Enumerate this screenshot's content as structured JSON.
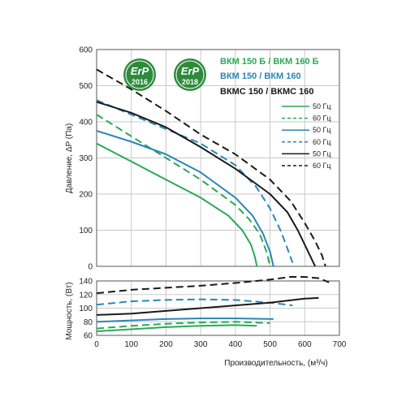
{
  "colors": {
    "green": "#2aa954",
    "blue": "#2a86b8",
    "black": "#1a1a1a",
    "grid": "#c9c9c9",
    "badge": "#2e8b3c"
  },
  "badges": [
    {
      "label": "ErP",
      "year": "2016"
    },
    {
      "label": "ErP",
      "year": "2018"
    }
  ],
  "chart_data": [
    {
      "type": "line",
      "ylabel": "Давление, ΔP (Па)",
      "xlim": [
        0,
        700
      ],
      "ylim": [
        0,
        600
      ],
      "xticks": [
        0,
        100,
        200,
        300,
        400,
        500,
        600,
        700
      ],
      "yticks": [
        0,
        100,
        200,
        300,
        400,
        500,
        600
      ],
      "grid": true,
      "legend": {
        "placement": "top-right",
        "groups": [
          {
            "title": "ВКМ 150 Б / ВКМ 160 Б",
            "color": "green",
            "entries": [
              "50 Гц",
              "60 Гц"
            ]
          },
          {
            "title": "ВКМ 150 / ВКМ 160",
            "color": "blue",
            "entries": [
              "50 Гц",
              "60 Гц"
            ]
          },
          {
            "title": "ВКМС 150 / ВКМС 160",
            "color": "black",
            "entries": [
              "50 Гц",
              "60 Гц"
            ]
          }
        ]
      },
      "series": [
        {
          "group": 0,
          "freq": 0,
          "color": "green",
          "dashed": false,
          "x": [
            0,
            100,
            200,
            300,
            380,
            420,
            445,
            455,
            460,
            462
          ],
          "y": [
            340,
            290,
            240,
            190,
            140,
            100,
            60,
            30,
            10,
            0
          ]
        },
        {
          "group": 0,
          "freq": 1,
          "color": "green",
          "dashed": true,
          "x": [
            0,
            100,
            200,
            300,
            400,
            440,
            470,
            490,
            500
          ],
          "y": [
            420,
            360,
            300,
            240,
            170,
            130,
            90,
            40,
            0
          ]
        },
        {
          "group": 1,
          "freq": 0,
          "color": "blue",
          "dashed": false,
          "x": [
            0,
            100,
            200,
            300,
            400,
            450,
            480,
            500,
            510
          ],
          "y": [
            375,
            345,
            310,
            260,
            190,
            140,
            90,
            40,
            0
          ]
        },
        {
          "group": 1,
          "freq": 1,
          "color": "blue",
          "dashed": true,
          "x": [
            0,
            100,
            200,
            300,
            400,
            460,
            500,
            530,
            550,
            565
          ],
          "y": [
            460,
            420,
            380,
            340,
            280,
            220,
            160,
            100,
            50,
            10
          ]
        },
        {
          "group": 2,
          "freq": 0,
          "color": "black",
          "dashed": false,
          "x": [
            0,
            100,
            200,
            300,
            400,
            500,
            550,
            580,
            600,
            615,
            625,
            630
          ],
          "y": [
            455,
            425,
            385,
            330,
            270,
            200,
            150,
            100,
            60,
            30,
            10,
            0
          ]
        },
        {
          "group": 2,
          "freq": 1,
          "color": "black",
          "dashed": true,
          "x": [
            0,
            100,
            200,
            300,
            400,
            500,
            560,
            600,
            630,
            650,
            660
          ],
          "y": [
            545,
            490,
            430,
            365,
            310,
            240,
            180,
            120,
            70,
            30,
            0
          ]
        }
      ]
    },
    {
      "type": "line",
      "xlabel": "Производительность, (м³/ч)",
      "ylabel": "Мощность, (Вт)",
      "xlim": [
        0,
        700
      ],
      "ylim": [
        60,
        140
      ],
      "xticks": [
        0,
        100,
        200,
        300,
        400,
        500,
        600,
        700
      ],
      "yticks": [
        60,
        80,
        100,
        120,
        140
      ],
      "grid": true,
      "series": [
        {
          "color": "green",
          "dashed": false,
          "x": [
            0,
            100,
            200,
            300,
            400,
            462
          ],
          "y": [
            66,
            69,
            72,
            74,
            75,
            74
          ]
        },
        {
          "color": "green",
          "dashed": true,
          "x": [
            0,
            100,
            200,
            300,
            400,
            500
          ],
          "y": [
            70,
            74,
            77,
            79,
            80,
            78
          ]
        },
        {
          "color": "blue",
          "dashed": false,
          "x": [
            0,
            100,
            200,
            300,
            400,
            510
          ],
          "y": [
            80,
            82,
            84,
            85,
            85,
            84
          ]
        },
        {
          "color": "blue",
          "dashed": true,
          "x": [
            0,
            100,
            200,
            300,
            400,
            500,
            565
          ],
          "y": [
            105,
            110,
            112,
            113,
            112,
            108,
            104
          ]
        },
        {
          "color": "black",
          "dashed": false,
          "x": [
            0,
            100,
            200,
            300,
            400,
            500,
            600,
            640
          ],
          "y": [
            90,
            92,
            96,
            100,
            104,
            108,
            114,
            115
          ]
        },
        {
          "color": "black",
          "dashed": true,
          "x": [
            0,
            100,
            200,
            300,
            400,
            500,
            560,
            600,
            640,
            670
          ],
          "y": [
            122,
            127,
            130,
            133,
            137,
            142,
            146,
            146,
            144,
            138
          ]
        }
      ]
    }
  ]
}
